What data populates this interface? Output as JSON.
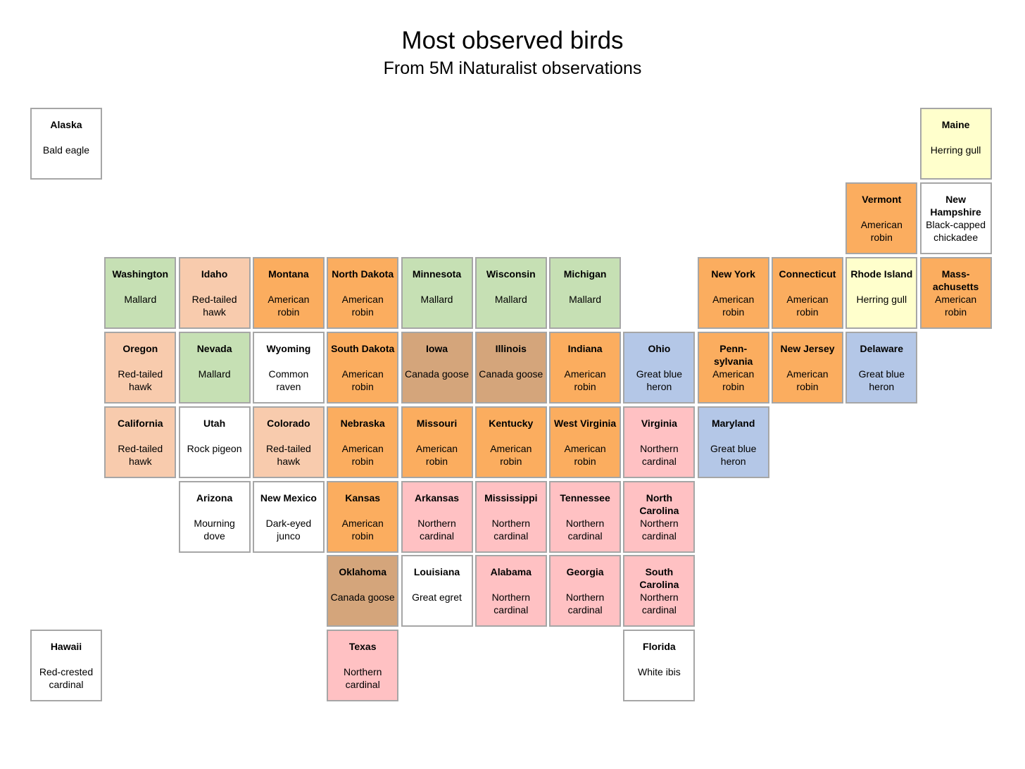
{
  "title": "Most observed birds",
  "subtitle": "From 5M iNaturalist observations",
  "colors": {
    "American robin": "#fbad5f",
    "Mallard": "#c6e0b4",
    "Red-tailed hawk": "#f8cbad",
    "Canada goose": "#d4a57b",
    "Great blue heron": "#b4c7e7",
    "Northern cardinal": "#ffc1c3",
    "Herring gull": "#ffffcc",
    "other": "#ffffff"
  },
  "states": [
    {
      "state": "Alaska",
      "bird": "Bald eagle",
      "row": 0,
      "col": 0
    },
    {
      "state": "Maine",
      "bird": "Herring gull",
      "row": 0,
      "col": 12
    },
    {
      "state": "Vermont",
      "bird": "American robin",
      "row": 1,
      "col": 11
    },
    {
      "state": "New Hampshire",
      "bird": "Black-capped chickadee",
      "row": 1,
      "col": 12
    },
    {
      "state": "Washington",
      "bird": "Mallard",
      "row": 2,
      "col": 1
    },
    {
      "state": "Idaho",
      "bird": "Red-tailed hawk",
      "row": 2,
      "col": 2
    },
    {
      "state": "Montana",
      "bird": "American robin",
      "row": 2,
      "col": 3
    },
    {
      "state": "North Dakota",
      "bird": "American robin",
      "row": 2,
      "col": 4
    },
    {
      "state": "Minnesota",
      "bird": "Mallard",
      "row": 2,
      "col": 5
    },
    {
      "state": "Wisconsin",
      "bird": "Mallard",
      "row": 2,
      "col": 6
    },
    {
      "state": "Michigan",
      "bird": "Mallard",
      "row": 2,
      "col": 7
    },
    {
      "state": "New York",
      "bird": "American robin",
      "row": 2,
      "col": 9
    },
    {
      "state": "Connecticut",
      "bird": "American robin",
      "row": 2,
      "col": 10
    },
    {
      "state": "Rhode Island",
      "bird": "Herring gull",
      "row": 2,
      "col": 11
    },
    {
      "state": "Mass-achusetts",
      "bird": "American robin",
      "row": 2,
      "col": 12
    },
    {
      "state": "Oregon",
      "bird": "Red-tailed hawk",
      "row": 3,
      "col": 1
    },
    {
      "state": "Nevada",
      "bird": "Mallard",
      "row": 3,
      "col": 2
    },
    {
      "state": "Wyoming",
      "bird": "Common raven",
      "row": 3,
      "col": 3
    },
    {
      "state": "South Dakota",
      "bird": "American robin",
      "row": 3,
      "col": 4
    },
    {
      "state": "Iowa",
      "bird": "Canada goose",
      "row": 3,
      "col": 5
    },
    {
      "state": "Illinois",
      "bird": "Canada goose",
      "row": 3,
      "col": 6
    },
    {
      "state": "Indiana",
      "bird": "American robin",
      "row": 3,
      "col": 7
    },
    {
      "state": "Ohio",
      "bird": "Great blue heron",
      "row": 3,
      "col": 8
    },
    {
      "state": "Penn-sylvania",
      "bird": "American robin",
      "row": 3,
      "col": 9
    },
    {
      "state": "New Jersey",
      "bird": "American robin",
      "row": 3,
      "col": 10
    },
    {
      "state": "Delaware",
      "bird": "Great blue heron",
      "row": 3,
      "col": 11
    },
    {
      "state": "California",
      "bird": "Red-tailed hawk",
      "row": 4,
      "col": 1
    },
    {
      "state": "Utah",
      "bird": "Rock pigeon",
      "row": 4,
      "col": 2
    },
    {
      "state": "Colorado",
      "bird": "Red-tailed hawk",
      "row": 4,
      "col": 3
    },
    {
      "state": "Nebraska",
      "bird": "American robin",
      "row": 4,
      "col": 4
    },
    {
      "state": "Missouri",
      "bird": "American robin",
      "row": 4,
      "col": 5
    },
    {
      "state": "Kentucky",
      "bird": "American robin",
      "row": 4,
      "col": 6
    },
    {
      "state": "West Virginia",
      "bird": "American robin",
      "row": 4,
      "col": 7
    },
    {
      "state": "Virginia",
      "bird": "Northern cardinal",
      "row": 4,
      "col": 8
    },
    {
      "state": "Maryland",
      "bird": "Great blue heron",
      "row": 4,
      "col": 9
    },
    {
      "state": "Arizona",
      "bird": "Mourning dove",
      "row": 5,
      "col": 2
    },
    {
      "state": "New Mexico",
      "bird": "Dark-eyed junco",
      "row": 5,
      "col": 3
    },
    {
      "state": "Kansas",
      "bird": "American robin",
      "row": 5,
      "col": 4
    },
    {
      "state": "Arkansas",
      "bird": "Northern cardinal",
      "row": 5,
      "col": 5
    },
    {
      "state": "Mississippi",
      "bird": "Northern cardinal",
      "row": 5,
      "col": 6
    },
    {
      "state": "Tennessee",
      "bird": "Northern cardinal",
      "row": 5,
      "col": 7
    },
    {
      "state": "North Carolina",
      "bird": "Northern cardinal",
      "row": 5,
      "col": 8
    },
    {
      "state": "Oklahoma",
      "bird": "Canada goose",
      "row": 6,
      "col": 4
    },
    {
      "state": "Louisiana",
      "bird": "Great egret",
      "row": 6,
      "col": 5
    },
    {
      "state": "Alabama",
      "bird": "Northern cardinal",
      "row": 6,
      "col": 6
    },
    {
      "state": "Georgia",
      "bird": "Northern cardinal",
      "row": 6,
      "col": 7
    },
    {
      "state": "South Carolina",
      "bird": "Northern cardinal",
      "row": 6,
      "col": 8
    },
    {
      "state": "Hawaii",
      "bird": "Red-crested cardinal",
      "row": 7,
      "col": 0
    },
    {
      "state": "Texas",
      "bird": "Northern cardinal",
      "row": 7,
      "col": 4
    },
    {
      "state": "Florida",
      "bird": "White ibis",
      "row": 7,
      "col": 8
    }
  ]
}
